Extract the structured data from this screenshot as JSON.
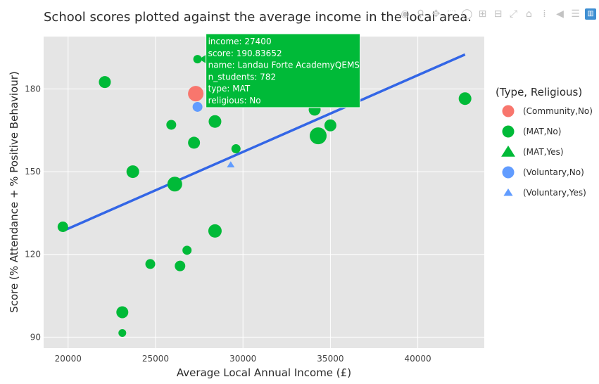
{
  "chart_data": {
    "type": "scatter",
    "title": "School scores plotted against the average income in the local area.",
    "xlabel": "Average Local Annual Income (£)",
    "ylabel": "Score (% Attendance + % Positive Behaviour)",
    "xlim": [
      18600,
      43800
    ],
    "ylim": [
      86,
      199
    ],
    "xticks": [
      20000,
      25000,
      30000,
      35000,
      40000
    ],
    "yticks": [
      90,
      120,
      150,
      180
    ],
    "grid": true,
    "legend_title": "(Type, Religious)",
    "legend_position": "right",
    "series": [
      {
        "name": "(Community,No)",
        "color": "#f8766d",
        "symbol": "circle",
        "points": [
          {
            "x": 27300,
            "y": 178.3,
            "size": 22
          }
        ]
      },
      {
        "name": "(MAT,No)",
        "color": "#00ba38",
        "symbol": "circle",
        "points": [
          {
            "x": 19700,
            "y": 130.0,
            "size": 15
          },
          {
            "x": 22100,
            "y": 182.5,
            "size": 17
          },
          {
            "x": 23100,
            "y": 99.0,
            "size": 17
          },
          {
            "x": 23100,
            "y": 91.5,
            "size": 11
          },
          {
            "x": 23700,
            "y": 150.0,
            "size": 18
          },
          {
            "x": 24700,
            "y": 116.5,
            "size": 14
          },
          {
            "x": 25900,
            "y": 167.0,
            "size": 14
          },
          {
            "x": 26100,
            "y": 145.5,
            "size": 21
          },
          {
            "x": 26400,
            "y": 115.8,
            "size": 15
          },
          {
            "x": 26800,
            "y": 121.5,
            "size": 13
          },
          {
            "x": 27200,
            "y": 160.5,
            "size": 17
          },
          {
            "x": 27400,
            "y": 190.8,
            "size": 12
          },
          {
            "x": 28400,
            "y": 168.2,
            "size": 18
          },
          {
            "x": 28400,
            "y": 128.5,
            "size": 19
          },
          {
            "x": 29600,
            "y": 158.3,
            "size": 13
          },
          {
            "x": 34100,
            "y": 172.5,
            "size": 17
          },
          {
            "x": 34300,
            "y": 163.0,
            "size": 24
          },
          {
            "x": 35000,
            "y": 166.8,
            "size": 17
          },
          {
            "x": 42700,
            "y": 176.5,
            "size": 18
          }
        ]
      },
      {
        "name": "(MAT,Yes)",
        "color": "#00ba38",
        "symbol": "triangle-up",
        "points": []
      },
      {
        "name": "(Voluntary,No)",
        "color": "#619cff",
        "symbol": "circle",
        "points": [
          {
            "x": 27400,
            "y": 173.5,
            "size": 14
          }
        ]
      },
      {
        "name": "(Voluntary,Yes)",
        "color": "#619cff",
        "symbol": "triangle-up",
        "points": [
          {
            "x": 29300,
            "y": 152.5,
            "size": 10
          }
        ]
      }
    ],
    "trendline": {
      "color": "#3366e6",
      "points": [
        {
          "x": 19700,
          "y": 128.5
        },
        {
          "x": 42700,
          "y": 192.5
        }
      ]
    },
    "hover_label": {
      "anchor": {
        "x": 27400,
        "y": 190.83652
      },
      "color": "#00ba38",
      "lines": [
        "income: 27400",
        "score: 190.83652",
        "name: Landau Forte AcademyQEMS",
        "n_students:  782",
        "type: MAT",
        "religious: No"
      ]
    }
  },
  "toolbar": {
    "buttons": [
      {
        "name": "camera-icon",
        "glyph": "◉"
      },
      {
        "name": "zoom-icon",
        "glyph": "⚲"
      },
      {
        "name": "pan-icon",
        "glyph": "✥"
      },
      {
        "name": "box-select-icon",
        "glyph": "⬚"
      },
      {
        "name": "lasso-select-icon",
        "glyph": "◯"
      },
      {
        "name": "zoom-in-icon",
        "glyph": "⊞"
      },
      {
        "name": "zoom-out-icon",
        "glyph": "⊟"
      },
      {
        "name": "autoscale-icon",
        "glyph": "⤢"
      },
      {
        "name": "reset-axes-icon",
        "glyph": "⌂"
      },
      {
        "name": "spike-lines-icon",
        "glyph": "⁞"
      },
      {
        "name": "hover-closest-icon",
        "glyph": "◀"
      },
      {
        "name": "hover-compare-icon",
        "glyph": "☰"
      },
      {
        "name": "plotly-logo-icon",
        "glyph": "▥"
      }
    ]
  }
}
